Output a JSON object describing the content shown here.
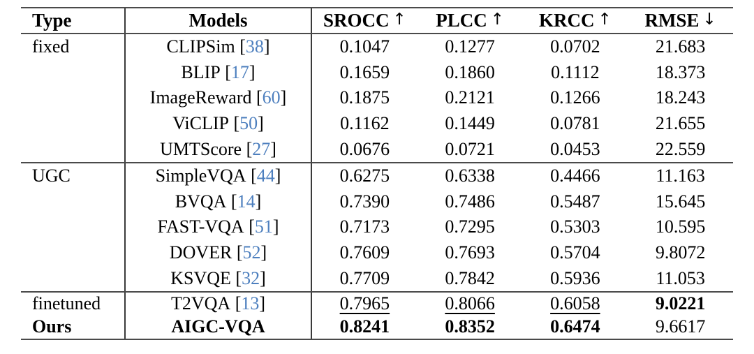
{
  "figure": {
    "background": "#ffffff"
  },
  "colors": {
    "citation": "#4d7fbe",
    "rule_horizontal": "#4a4a4a",
    "rule_vertical": "#3a3a3a",
    "text": "#000000"
  },
  "table": {
    "headers": [
      {
        "label": "Type",
        "arrow": ""
      },
      {
        "label": "Models",
        "arrow": ""
      },
      {
        "label": "SROCC",
        "arrow": "↑"
      },
      {
        "label": "PLCC",
        "arrow": "↑"
      },
      {
        "label": "KRCC",
        "arrow": "↑"
      },
      {
        "label": "RMSE",
        "arrow": "↓"
      }
    ],
    "sections": [
      {
        "name": "fixed",
        "rows": [
          {
            "type": "fixed",
            "type_bold": false,
            "model": "CLIPSim",
            "ref": "38",
            "model_bold": false,
            "values": [
              "0.1047",
              "0.1277",
              "0.0702",
              "21.683"
            ],
            "styles": [
              "",
              "",
              "",
              ""
            ]
          },
          {
            "type": "",
            "type_bold": false,
            "model": "BLIP",
            "ref": "17",
            "model_bold": false,
            "values": [
              "0.1659",
              "0.1860",
              "0.1112",
              "18.373"
            ],
            "styles": [
              "",
              "",
              "",
              ""
            ]
          },
          {
            "type": "",
            "type_bold": false,
            "model": "ImageReward",
            "ref": "60",
            "model_bold": false,
            "values": [
              "0.1875",
              "0.2121",
              "0.1266",
              "18.243"
            ],
            "styles": [
              "",
              "",
              "",
              ""
            ]
          },
          {
            "type": "",
            "type_bold": false,
            "model": "ViCLIP",
            "ref": "50",
            "model_bold": false,
            "values": [
              "0.1162",
              "0.1449",
              "0.0781",
              "21.655"
            ],
            "styles": [
              "",
              "",
              "",
              ""
            ]
          },
          {
            "type": "",
            "type_bold": false,
            "model": "UMTScore",
            "ref": "27",
            "model_bold": false,
            "values": [
              "0.0676",
              "0.0721",
              "0.0453",
              "22.559"
            ],
            "styles": [
              "",
              "",
              "",
              ""
            ]
          }
        ]
      },
      {
        "name": "ugc",
        "rows": [
          {
            "type": "UGC",
            "type_bold": false,
            "model": "SimpleVQA",
            "ref": "44",
            "model_bold": false,
            "values": [
              "0.6275",
              "0.6338",
              "0.4466",
              "11.163"
            ],
            "styles": [
              "",
              "",
              "",
              ""
            ]
          },
          {
            "type": "",
            "type_bold": false,
            "model": "BVQA",
            "ref": "14",
            "model_bold": false,
            "values": [
              "0.7390",
              "0.7486",
              "0.5487",
              "15.645"
            ],
            "styles": [
              "",
              "",
              "",
              ""
            ]
          },
          {
            "type": "",
            "type_bold": false,
            "model": "FAST-VQA",
            "ref": "51",
            "model_bold": false,
            "values": [
              "0.7173",
              "0.7295",
              "0.5303",
              "10.595"
            ],
            "styles": [
              "",
              "",
              "",
              ""
            ]
          },
          {
            "type": "",
            "type_bold": false,
            "model": "DOVER",
            "ref": "52",
            "model_bold": false,
            "values": [
              "0.7609",
              "0.7693",
              "0.5704",
              "9.8072"
            ],
            "styles": [
              "",
              "",
              "",
              ""
            ]
          },
          {
            "type": "",
            "type_bold": false,
            "model": "KSVQE",
            "ref": "32",
            "model_bold": false,
            "values": [
              "0.7709",
              "0.7842",
              "0.5936",
              "11.053"
            ],
            "styles": [
              "",
              "",
              "",
              ""
            ]
          }
        ]
      },
      {
        "name": "finetuned-ours",
        "rows": [
          {
            "type": "finetuned",
            "type_bold": false,
            "model": "T2VQA",
            "ref": "13",
            "model_bold": false,
            "values": [
              "0.7965",
              "0.8066",
              "0.6058",
              "9.0221"
            ],
            "styles": [
              "underline",
              "underline",
              "underline",
              "bold"
            ]
          },
          {
            "type": "Ours",
            "type_bold": true,
            "model": "AIGC-VQA",
            "ref": "",
            "model_bold": true,
            "values": [
              "0.8241",
              "0.8352",
              "0.6474",
              "9.6617"
            ],
            "styles": [
              "bold",
              "bold",
              "bold",
              ""
            ]
          }
        ]
      }
    ]
  }
}
